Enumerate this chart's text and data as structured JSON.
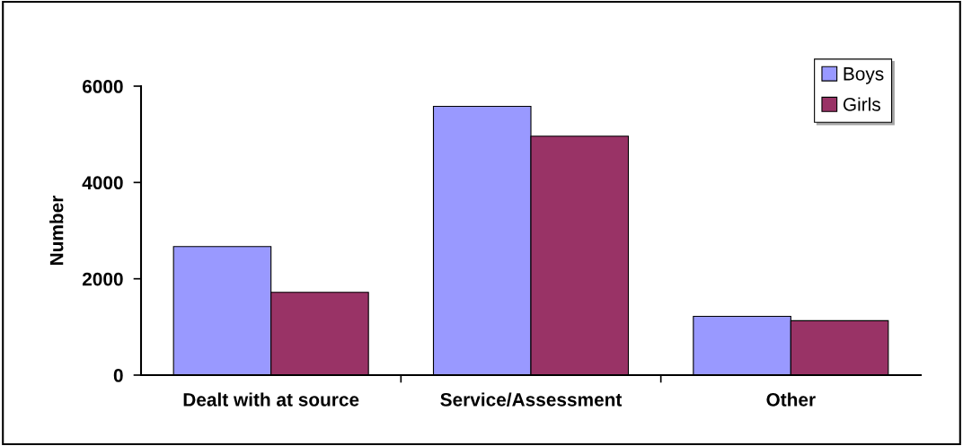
{
  "chart_data": {
    "type": "bar",
    "ylabel": "Number",
    "categories": [
      "Dealt with at source",
      "Service/Assessment",
      "Other"
    ],
    "series": [
      {
        "name": "Boys",
        "color": "#9999ff",
        "values": [
          2670,
          5580,
          1220
        ]
      },
      {
        "name": "Girls",
        "color": "#993366",
        "values": [
          1720,
          4960,
          1130
        ]
      }
    ],
    "ylim": [
      0,
      6000
    ],
    "yticks": [
      0,
      2000,
      4000,
      6000
    ],
    "grid": false,
    "legend": "top right"
  }
}
